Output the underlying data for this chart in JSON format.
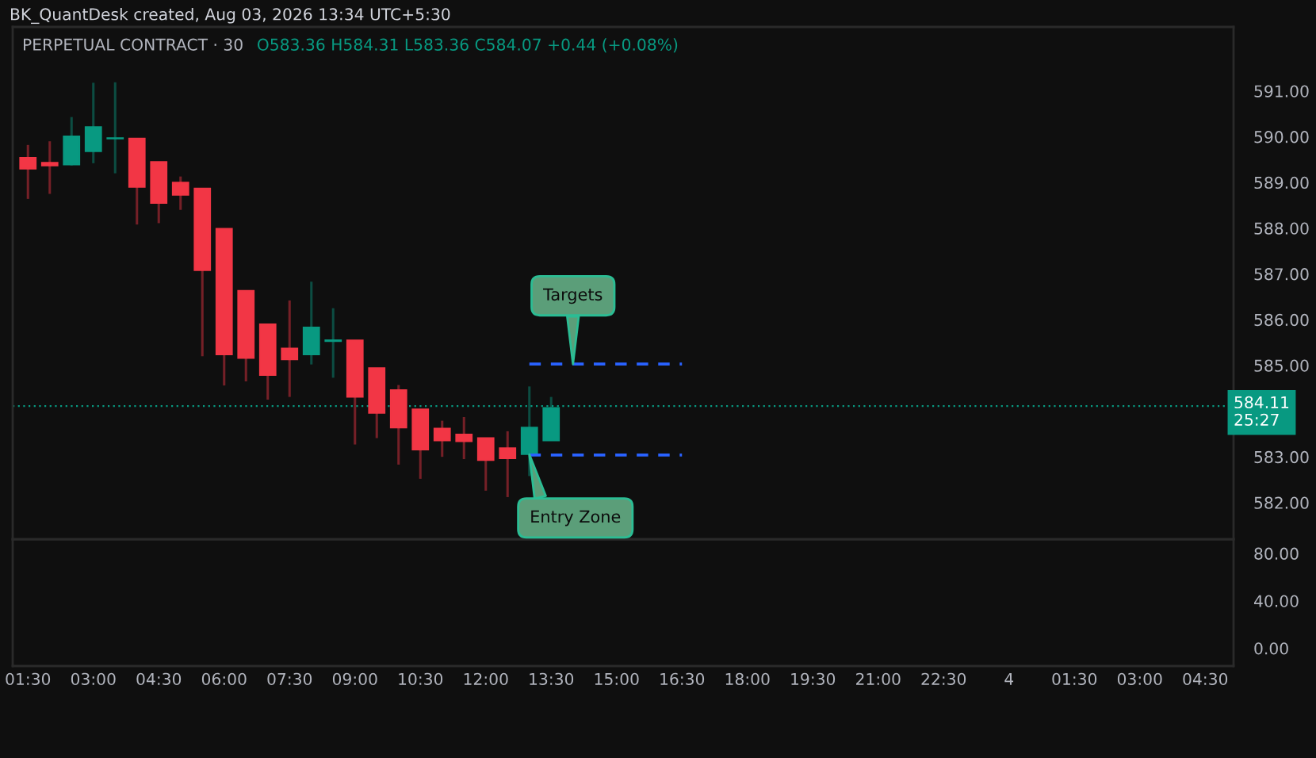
{
  "chart_data": [
    {
      "type": "candlestick",
      "title": "BK_QuantDesk created, Aug 03, 2026 13:34 UTC+5:30",
      "subtitle": "PERPETUAL CONTRACT · 30",
      "x": [
        "2026-08-03T01:30",
        "2026-08-03T02:00",
        "2026-08-03T02:30",
        "2026-08-03T03:00",
        "2026-08-03T03:30",
        "2026-08-03T04:00",
        "2026-08-03T04:30",
        "2026-08-03T05:00",
        "2026-08-03T05:30",
        "2026-08-03T06:00",
        "2026-08-03T06:30",
        "2026-08-03T07:00",
        "2026-08-03T07:30",
        "2026-08-03T08:00",
        "2026-08-03T08:30",
        "2026-08-03T09:00",
        "2026-08-03T09:30",
        "2026-08-03T10:00",
        "2026-08-03T10:30",
        "2026-08-03T11:00",
        "2026-08-03T11:30",
        "2026-08-03T12:00",
        "2026-08-03T12:30",
        "2026-08-03T13:00",
        "2026-08-03T13:30"
      ],
      "ohlc": [
        [
          589.54,
          589.82,
          588.64,
          589.3
        ],
        [
          589.43,
          589.9,
          588.75,
          589.37
        ],
        [
          589.39,
          590.43,
          589.37,
          590.01
        ],
        [
          589.68,
          591.18,
          589.42,
          590.21
        ],
        [
          589.96,
          591.19,
          589.2,
          589.97
        ],
        [
          589.96,
          589.96,
          588.08,
          588.9
        ],
        [
          589.45,
          589.45,
          588.11,
          588.55
        ],
        [
          589.0,
          589.13,
          588.4,
          588.73
        ],
        [
          588.87,
          588.87,
          585.2,
          587.08
        ],
        [
          587.99,
          587.99,
          584.56,
          585.24
        ],
        [
          586.63,
          586.63,
          584.65,
          585.16
        ],
        [
          585.9,
          585.9,
          584.25,
          584.79
        ],
        [
          585.37,
          586.42,
          584.31,
          585.13
        ],
        [
          585.24,
          586.83,
          585.02,
          585.83
        ],
        [
          585.53,
          586.25,
          584.73,
          585.55
        ],
        [
          585.55,
          585.55,
          583.27,
          584.31
        ],
        [
          584.94,
          584.94,
          583.41,
          583.96
        ],
        [
          584.46,
          584.57,
          582.83,
          583.64
        ],
        [
          584.04,
          584.04,
          582.52,
          583.16
        ],
        [
          583.62,
          583.79,
          583.0,
          583.36
        ],
        [
          583.49,
          583.87,
          582.95,
          583.34
        ],
        [
          583.41,
          583.41,
          582.26,
          582.93
        ],
        [
          583.19,
          583.56,
          582.12,
          582.97
        ],
        [
          583.06,
          584.54,
          582.58,
          583.64
        ],
        [
          583.36,
          584.31,
          583.36,
          584.07
        ]
      ],
      "colors": [
        "#f23645",
        "#f23645",
        "#089981",
        "#089981",
        "#089981",
        "#f23645",
        "#f23645",
        "#f23645",
        "#f23645",
        "#f23645",
        "#f23645",
        "#f23645",
        "#f23645",
        "#089981",
        "#089981",
        "#f23645",
        "#f23645",
        "#f23645",
        "#f23645",
        "#f23645",
        "#f23645",
        "#f23645",
        "#f23645",
        "#089981",
        "#089981"
      ],
      "series": [
        {
          "type": "line",
          "x": [
            "2026-08-03T13:00",
            "2026-08-03T16:30"
          ],
          "values": [
            585.03,
            585.03
          ],
          "color": "#2962ff",
          "line_style": "dashed"
        },
        {
          "type": "line",
          "x": [
            "2026-08-03T13:00",
            "2026-08-03T16:30"
          ],
          "values": [
            583.04,
            583.04
          ],
          "color": "#2962ff",
          "line_style": "dashed"
        }
      ],
      "ref_lines": [
        {
          "axis": "y",
          "value": 584.11,
          "label": "584.11\n25:27",
          "color": "#089981",
          "line_style": "dotted"
        }
      ],
      "annotations": [
        "O583.36 H584.31 L583.36 C584.07 +0.44 (+0.08%)",
        {
          "text": "Targets",
          "x": "2026-08-03T14:00",
          "y": 585.03
        },
        {
          "text": "Entry Zone",
          "x": "2026-08-03T13:00",
          "y": 583.05
        }
      ],
      "xlim": [
        "2026-08-03T01:09",
        "2026-08-04T05:09"
      ],
      "ylim": [
        581.2,
        592.4
      ],
      "yticks": [
        {
          "value": 582,
          "label": "582.00"
        },
        {
          "value": 583,
          "label": "583.00"
        },
        {
          "value": 585,
          "label": "585.00"
        },
        {
          "value": 586,
          "label": "586.00"
        },
        {
          "value": 587,
          "label": "587.00"
        },
        {
          "value": 588,
          "label": "588.00"
        },
        {
          "value": 589,
          "label": "589.00"
        },
        {
          "value": 590,
          "label": "590.00"
        },
        {
          "value": 591,
          "label": "591.00"
        }
      ],
      "tick_labels": "y"
    },
    {
      "type": "line",
      "xlim": [
        "2026-08-03T01:09",
        "2026-08-04T05:09"
      ],
      "xticks": [
        {
          "value": "2026-08-03T01:30",
          "label": "01:30"
        },
        {
          "value": "2026-08-03T03:00",
          "label": "03:00"
        },
        {
          "value": "2026-08-03T04:30",
          "label": "04:30"
        },
        {
          "value": "2026-08-03T06:00",
          "label": "06:00"
        },
        {
          "value": "2026-08-03T07:30",
          "label": "07:30"
        },
        {
          "value": "2026-08-03T09:00",
          "label": "09:00"
        },
        {
          "value": "2026-08-03T10:30",
          "label": "10:30"
        },
        {
          "value": "2026-08-03T12:00",
          "label": "12:00"
        },
        {
          "value": "2026-08-03T13:30",
          "label": "13:30"
        },
        {
          "value": "2026-08-03T15:00",
          "label": "15:00"
        },
        {
          "value": "2026-08-03T16:30",
          "label": "16:30"
        },
        {
          "value": "2026-08-03T18:00",
          "label": "18:00"
        },
        {
          "value": "2026-08-03T19:30",
          "label": "19:30"
        },
        {
          "value": "2026-08-03T21:00",
          "label": "21:00"
        },
        {
          "value": "2026-08-03T22:30",
          "label": "22:30"
        },
        {
          "value": "2026-08-04",
          "label": "4"
        },
        {
          "value": "2026-08-04T01:30",
          "label": "01:30"
        },
        {
          "value": "2026-08-04T03:00",
          "label": "03:00"
        },
        {
          "value": "2026-08-04T04:30",
          "label": "04:30"
        }
      ],
      "ylim": [
        -15,
        92
      ],
      "yticks": [
        {
          "value": 80,
          "label": "80.00"
        },
        {
          "value": 40,
          "label": "40.00"
        },
        {
          "value": 0,
          "label": "0.00"
        }
      ]
    }
  ]
}
